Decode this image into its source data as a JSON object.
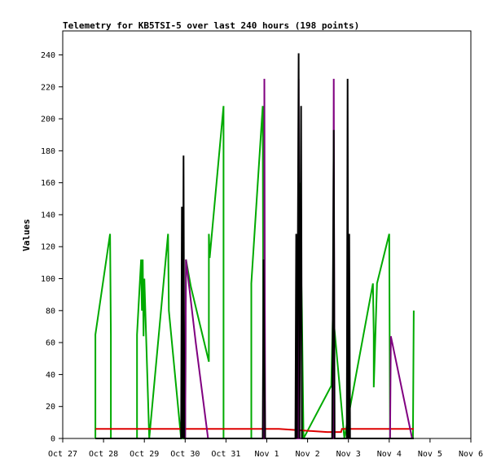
{
  "chart_data": {
    "type": "line",
    "title": "Telemetry for KB5TSI-5 over last 240 hours (198 points)",
    "xlabel": "",
    "ylabel": "Values",
    "xlim": [
      0,
      10
    ],
    "ylim": [
      0,
      255
    ],
    "grid": false,
    "legend": "none",
    "x_ticks": [
      {
        "x": 0,
        "label": "Oct 27"
      },
      {
        "x": 1,
        "label": "Oct 28"
      },
      {
        "x": 2,
        "label": "Oct 29"
      },
      {
        "x": 3,
        "label": "Oct 30"
      },
      {
        "x": 4,
        "label": "Oct 31"
      },
      {
        "x": 5,
        "label": "Nov 1"
      },
      {
        "x": 6,
        "label": "Nov 2"
      },
      {
        "x": 7,
        "label": "Nov 3"
      },
      {
        "x": 8,
        "label": "Nov 4"
      },
      {
        "x": 9,
        "label": "Nov 5"
      },
      {
        "x": 10,
        "label": "Nov 6"
      }
    ],
    "y_ticks": [
      0,
      20,
      40,
      60,
      80,
      100,
      120,
      140,
      160,
      180,
      200,
      220,
      240
    ],
    "series": [
      {
        "color": "#00aa00",
        "points": [
          [
            0.8,
            0
          ],
          [
            0.8,
            65
          ],
          [
            1.16,
            128
          ],
          [
            1.18,
            65
          ],
          [
            1.18,
            0
          ],
          [
            1.82,
            0
          ],
          [
            1.82,
            65
          ],
          [
            1.92,
            112
          ],
          [
            1.94,
            80
          ],
          [
            1.96,
            112
          ],
          [
            1.98,
            64
          ],
          [
            2.0,
            100
          ],
          [
            2.12,
            0
          ],
          [
            2.58,
            128
          ],
          [
            2.6,
            80
          ],
          [
            2.9,
            0
          ],
          [
            3.0,
            0
          ],
          [
            3.02,
            112
          ],
          [
            3.14,
            95
          ],
          [
            3.58,
            48
          ],
          [
            3.58,
            128
          ],
          [
            3.6,
            113
          ],
          [
            3.94,
            208
          ],
          [
            3.94,
            0
          ],
          [
            4.62,
            0
          ],
          [
            4.62,
            97
          ],
          [
            4.9,
            208
          ],
          [
            4.92,
            0
          ],
          [
            5.76,
            0
          ],
          [
            5.78,
            80
          ],
          [
            5.8,
            160
          ],
          [
            5.86,
            80
          ],
          [
            5.9,
            0
          ],
          [
            6.58,
            33
          ],
          [
            6.62,
            79
          ],
          [
            6.9,
            0
          ],
          [
            7.6,
            97
          ],
          [
            7.62,
            65
          ],
          [
            7.62,
            32
          ],
          [
            7.7,
            97
          ],
          [
            8.0,
            128
          ],
          [
            8.02,
            0
          ],
          [
            8.58,
            0
          ],
          [
            8.6,
            80
          ]
        ]
      },
      {
        "color": "#dd0000",
        "points": [
          [
            0.8,
            6
          ],
          [
            5.3,
            6
          ],
          [
            5.9,
            5
          ],
          [
            6.48,
            4
          ],
          [
            6.82,
            4
          ],
          [
            6.84,
            6
          ],
          [
            8.6,
            6
          ]
        ]
      },
      {
        "color": "#800080",
        "points": [
          [
            3.0,
            0
          ],
          [
            3.02,
            112
          ],
          [
            3.26,
            60
          ],
          [
            3.56,
            0
          ],
          [
            3.58,
            0
          ],
          [
            4.94,
            0
          ],
          [
            4.94,
            225
          ],
          [
            4.96,
            0
          ],
          [
            5.76,
            0
          ],
          [
            5.78,
            225
          ],
          [
            5.8,
            0
          ],
          [
            6.62,
            0
          ],
          [
            6.64,
            225
          ],
          [
            6.66,
            0
          ],
          [
            8.02,
            0
          ],
          [
            8.04,
            64
          ],
          [
            8.56,
            0
          ]
        ]
      },
      {
        "color": "#000000",
        "points": [
          [
            0.8,
            0
          ],
          [
            2.9,
            0
          ],
          [
            2.92,
            145
          ],
          [
            2.94,
            0
          ],
          [
            2.96,
            177
          ],
          [
            2.98,
            0
          ],
          [
            4.88,
            0
          ],
          [
            4.9,
            0
          ],
          [
            4.92,
            112
          ],
          [
            4.94,
            48
          ],
          [
            4.96,
            0
          ],
          [
            5.7,
            0
          ],
          [
            5.72,
            128
          ],
          [
            5.74,
            0
          ],
          [
            5.78,
            241
          ],
          [
            5.8,
            0
          ],
          [
            5.84,
            208
          ],
          [
            5.86,
            0
          ],
          [
            6.6,
            0
          ],
          [
            6.62,
            97
          ],
          [
            6.64,
            193
          ],
          [
            6.66,
            0
          ],
          [
            6.96,
            0
          ],
          [
            6.98,
            225
          ],
          [
            7.0,
            0
          ],
          [
            7.02,
            128
          ],
          [
            7.04,
            0
          ],
          [
            8.6,
            0
          ]
        ]
      }
    ]
  }
}
